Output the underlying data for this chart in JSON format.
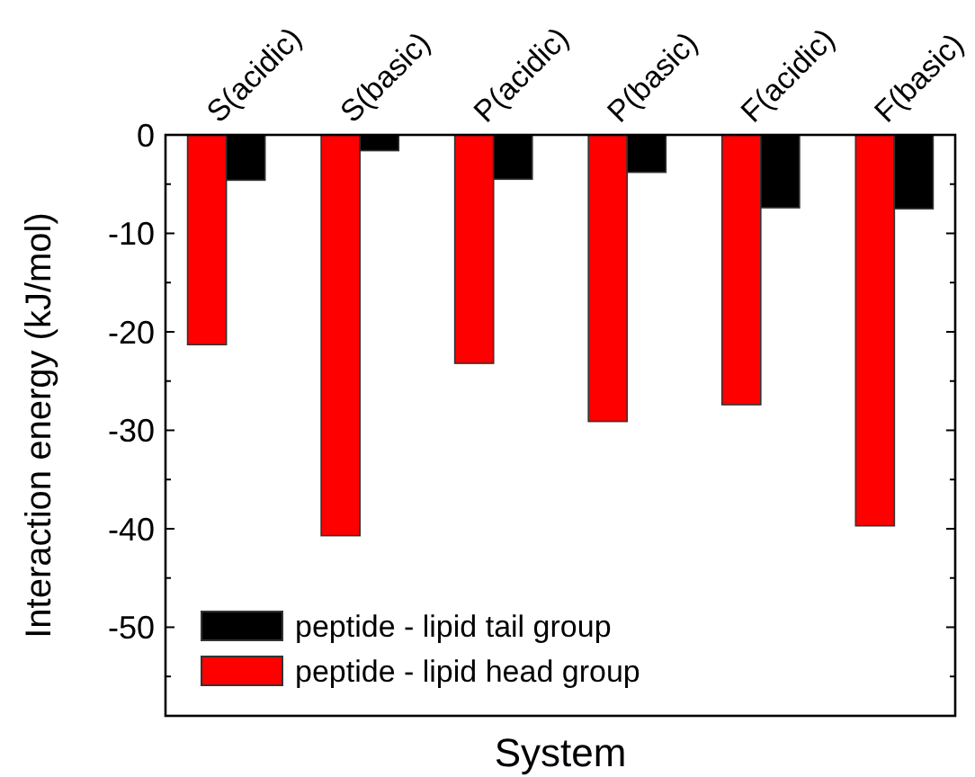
{
  "chart_data": {
    "type": "bar",
    "xlabel": "System",
    "ylabel": "Interaction energy (kJ/mol)",
    "categories": [
      "S(acidic)",
      "S(basic)",
      "P(acidic)",
      "P(basic)",
      "F(acidic)",
      "F(basic)"
    ],
    "series": [
      {
        "name": "peptide - lipid head group",
        "color": "#ff0000",
        "values": [
          -21.3,
          -40.7,
          -23.2,
          -29.1,
          -27.4,
          -39.7
        ]
      },
      {
        "name": "peptide - lipid tail group",
        "color": "#000000",
        "values": [
          -4.6,
          -1.6,
          -4.5,
          -3.8,
          -7.4,
          -7.5
        ]
      }
    ],
    "ylim": [
      -59,
      0
    ],
    "yticks": [
      0,
      {
        "value": -5,
        "label": null
      },
      -10,
      {
        "value": -15,
        "label": null
      },
      -20,
      {
        "value": -25,
        "label": null
      },
      -30,
      {
        "value": -35,
        "label": null
      },
      -40,
      {
        "value": -45,
        "label": null
      },
      -50,
      {
        "value": -55,
        "label": null
      }
    ],
    "grid": false,
    "legend": "bottom left"
  }
}
